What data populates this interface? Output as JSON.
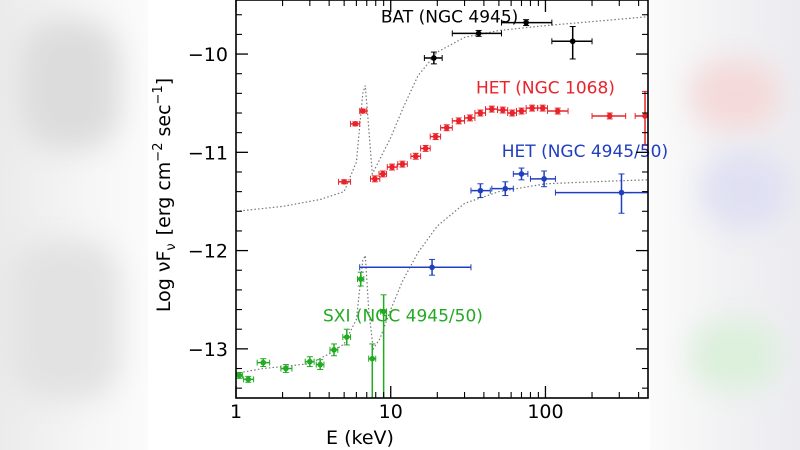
{
  "chart_data": {
    "type": "scatter",
    "xlabel": "E (keV)",
    "ylabel": "Log νFν [erg cm⁻² sec⁻¹]",
    "ylabel_parts": {
      "base": "Log νF",
      "sub": "ν",
      "bracket": "[erg cm",
      "sup1": "−2",
      "mid": " sec",
      "sup2": "−1",
      "close": "]"
    },
    "xscale": "log",
    "xlim": [
      1,
      460
    ],
    "ylim": [
      -13.5,
      -9.45
    ],
    "xticks": [
      1,
      10,
      100
    ],
    "xtick_labels": [
      "1",
      "10",
      "100"
    ],
    "yticks": [
      -10,
      -11,
      -12,
      -13
    ],
    "ytick_labels": [
      "−10",
      "−11",
      "−12",
      "−13"
    ],
    "series": [
      {
        "name": "BAT (NGC 4945)",
        "label": "BAT (NGC 4945)",
        "color": "#000000",
        "label_pos": {
          "x": 24,
          "y": -9.68
        },
        "points": [
          {
            "x": 19,
            "xlo": 16.5,
            "xhi": 21.5,
            "y": -10.04,
            "ylo": -10.1,
            "yhi": -9.98
          },
          {
            "x": 37,
            "xlo": 25,
            "xhi": 52,
            "y": -9.79,
            "ylo": -9.82,
            "yhi": -9.76
          },
          {
            "x": 75,
            "xlo": 52,
            "xhi": 110,
            "y": -9.68,
            "ylo": -9.71,
            "yhi": -9.65
          },
          {
            "x": 150,
            "xlo": 110,
            "xhi": 200,
            "y": -9.87,
            "ylo": -10.05,
            "yhi": -9.72
          }
        ]
      },
      {
        "name": "HET (NGC 1068)",
        "label": "HET (NGC 1068)",
        "color": "#e8232b",
        "label_pos": {
          "x": 100,
          "y": -10.4
        },
        "points": [
          {
            "x": 5.0,
            "xlo": 4.6,
            "xhi": 5.5,
            "y": -11.3,
            "ylo": -11.32,
            "yhi": -11.28
          },
          {
            "x": 5.9,
            "xlo": 5.5,
            "xhi": 6.3,
            "y": -10.71,
            "ylo": -10.73,
            "yhi": -10.69
          },
          {
            "x": 6.6,
            "xlo": 6.3,
            "xhi": 7.0,
            "y": -10.58,
            "ylo": -10.6,
            "yhi": -10.56
          },
          {
            "x": 7.9,
            "xlo": 7.4,
            "xhi": 8.5,
            "y": -11.27,
            "ylo": -11.3,
            "yhi": -11.24
          },
          {
            "x": 8.9,
            "xlo": 8.4,
            "xhi": 9.4,
            "y": -11.22,
            "ylo": -11.25,
            "yhi": -11.19
          },
          {
            "x": 10.2,
            "xlo": 9.5,
            "xhi": 11.0,
            "y": -11.15,
            "ylo": -11.18,
            "yhi": -11.12
          },
          {
            "x": 11.9,
            "xlo": 11.1,
            "xhi": 12.8,
            "y": -11.12,
            "ylo": -11.15,
            "yhi": -11.09
          },
          {
            "x": 14.5,
            "xlo": 13.5,
            "xhi": 15.6,
            "y": -11.04,
            "ylo": -11.07,
            "yhi": -11.01
          },
          {
            "x": 16.8,
            "xlo": 15.6,
            "xhi": 18.0,
            "y": -10.96,
            "ylo": -10.99,
            "yhi": -10.93
          },
          {
            "x": 19.5,
            "xlo": 18.0,
            "xhi": 21.0,
            "y": -10.84,
            "ylo": -10.87,
            "yhi": -10.81
          },
          {
            "x": 23.0,
            "xlo": 21.0,
            "xhi": 25.0,
            "y": -10.75,
            "ylo": -10.78,
            "yhi": -10.72
          },
          {
            "x": 27.5,
            "xlo": 25.0,
            "xhi": 30.0,
            "y": -10.68,
            "ylo": -10.71,
            "yhi": -10.65
          },
          {
            "x": 32.5,
            "xlo": 30.0,
            "xhi": 35.0,
            "y": -10.65,
            "ylo": -10.68,
            "yhi": -10.62
          },
          {
            "x": 38.0,
            "xlo": 35.0,
            "xhi": 41.0,
            "y": -10.6,
            "ylo": -10.63,
            "yhi": -10.57
          },
          {
            "x": 45.0,
            "xlo": 41.0,
            "xhi": 49.0,
            "y": -10.56,
            "ylo": -10.59,
            "yhi": -10.53
          },
          {
            "x": 53.0,
            "xlo": 49.0,
            "xhi": 57.0,
            "y": -10.57,
            "ylo": -10.6,
            "yhi": -10.54
          },
          {
            "x": 61.0,
            "xlo": 57.0,
            "xhi": 65.0,
            "y": -10.6,
            "ylo": -10.63,
            "yhi": -10.57
          },
          {
            "x": 70.0,
            "xlo": 65.0,
            "xhi": 75.0,
            "y": -10.58,
            "ylo": -10.61,
            "yhi": -10.55
          },
          {
            "x": 82.0,
            "xlo": 75.0,
            "xhi": 89.0,
            "y": -10.55,
            "ylo": -10.58,
            "yhi": -10.52
          },
          {
            "x": 96.0,
            "xlo": 89.0,
            "xhi": 103.0,
            "y": -10.55,
            "ylo": -10.58,
            "yhi": -10.52
          },
          {
            "x": 120.0,
            "xlo": 103.0,
            "xhi": 140.0,
            "y": -10.58,
            "ylo": -10.61,
            "yhi": -10.55
          },
          {
            "x": 260.0,
            "xlo": 200.0,
            "xhi": 330.0,
            "y": -10.63,
            "ylo": -10.66,
            "yhi": -10.6
          },
          {
            "x": 440.0,
            "xlo": 380.0,
            "xhi": 460.0,
            "y": -10.63,
            "ylo": -10.92,
            "yhi": -10.38
          }
        ]
      },
      {
        "name": "HET (NGC 4945/50)",
        "label": "HET (NGC 4945/50)",
        "color": "#1f3fbf",
        "label_pos": {
          "x": 180,
          "y": -11.05
        },
        "points": [
          {
            "x": 18.5,
            "xlo": 6.3,
            "xhi": 33.0,
            "y": -12.17,
            "ylo": -12.25,
            "yhi": -12.09
          },
          {
            "x": 38.0,
            "xlo": 33.0,
            "xhi": 44.0,
            "y": -11.39,
            "ylo": -11.46,
            "yhi": -11.32
          },
          {
            "x": 55.0,
            "xlo": 45.0,
            "xhi": 62.0,
            "y": -11.37,
            "ylo": -11.44,
            "yhi": -11.3
          },
          {
            "x": 70.0,
            "xlo": 62.0,
            "xhi": 77.0,
            "y": -11.22,
            "ylo": -11.28,
            "yhi": -11.16
          },
          {
            "x": 98.0,
            "xlo": 80.0,
            "xhi": 116.0,
            "y": -11.27,
            "ylo": -11.35,
            "yhi": -11.19
          },
          {
            "x": 310.0,
            "xlo": 116.0,
            "xhi": 460.0,
            "y": -11.41,
            "ylo": -11.62,
            "yhi": -11.22
          }
        ]
      },
      {
        "name": "SXI (NGC 4945/50)",
        "label": "SXI (NGC 4945/50)",
        "color": "#22aa22",
        "label_pos": {
          "x": 12,
          "y": -12.72
        },
        "points": [
          {
            "x": 1.05,
            "xlo": 1.0,
            "xhi": 1.1,
            "y": -13.27,
            "ylo": -13.3,
            "yhi": -13.24
          },
          {
            "x": 1.2,
            "xlo": 1.12,
            "xhi": 1.3,
            "y": -13.31,
            "ylo": -13.34,
            "yhi": -13.28
          },
          {
            "x": 1.5,
            "xlo": 1.37,
            "xhi": 1.65,
            "y": -13.14,
            "ylo": -13.18,
            "yhi": -13.1
          },
          {
            "x": 2.1,
            "xlo": 1.95,
            "xhi": 2.3,
            "y": -13.2,
            "ylo": -13.24,
            "yhi": -13.16
          },
          {
            "x": 3.0,
            "xlo": 2.8,
            "xhi": 3.2,
            "y": -13.13,
            "ylo": -13.18,
            "yhi": -13.08
          },
          {
            "x": 3.5,
            "xlo": 3.3,
            "xhi": 3.7,
            "y": -13.16,
            "ylo": -13.21,
            "yhi": -13.11
          },
          {
            "x": 4.3,
            "xlo": 4.05,
            "xhi": 4.55,
            "y": -13.01,
            "ylo": -13.07,
            "yhi": -12.95
          },
          {
            "x": 5.2,
            "xlo": 4.9,
            "xhi": 5.5,
            "y": -12.88,
            "ylo": -12.96,
            "yhi": -12.8
          },
          {
            "x": 6.4,
            "xlo": 6.1,
            "xhi": 6.7,
            "y": -12.29,
            "ylo": -12.36,
            "yhi": -12.22
          },
          {
            "x": 7.6,
            "xlo": 7.2,
            "xhi": 8.0,
            "y": -13.1,
            "ylo": -13.5,
            "yhi": -12.95
          },
          {
            "x": 9.0,
            "xlo": 8.6,
            "xhi": 9.4,
            "y": -12.62,
            "ylo": -13.5,
            "yhi": -12.45
          }
        ]
      }
    ],
    "model_curves": [
      {
        "name": "upper model",
        "color": "#777777",
        "points": [
          [
            1,
            -11.6
          ],
          [
            2,
            -11.55
          ],
          [
            3.5,
            -11.48
          ],
          [
            5,
            -11.4
          ],
          [
            6,
            -11.1
          ],
          [
            6.6,
            -10.4
          ],
          [
            6.85,
            -10.32
          ],
          [
            7.2,
            -10.75
          ],
          [
            7.6,
            -11.22
          ],
          [
            8.2,
            -11.12
          ],
          [
            10,
            -10.85
          ],
          [
            12,
            -10.55
          ],
          [
            15,
            -10.22
          ],
          [
            20,
            -9.98
          ],
          [
            30,
            -9.83
          ],
          [
            50,
            -9.76
          ],
          [
            100,
            -9.71
          ],
          [
            200,
            -9.67
          ],
          [
            460,
            -9.62
          ]
        ]
      },
      {
        "name": "lower model",
        "color": "#777777",
        "points": [
          [
            1,
            -13.25
          ],
          [
            1.5,
            -13.2
          ],
          [
            2,
            -13.18
          ],
          [
            3,
            -13.15
          ],
          [
            4,
            -13.05
          ],
          [
            5,
            -12.95
          ],
          [
            6,
            -12.7
          ],
          [
            6.6,
            -12.1
          ],
          [
            6.85,
            -12.05
          ],
          [
            7.2,
            -12.6
          ],
          [
            7.7,
            -13.0
          ],
          [
            8.5,
            -12.9
          ],
          [
            10,
            -12.6
          ],
          [
            12,
            -12.3
          ],
          [
            15,
            -12.02
          ],
          [
            20,
            -11.75
          ],
          [
            30,
            -11.52
          ],
          [
            50,
            -11.4
          ],
          [
            100,
            -11.32
          ],
          [
            200,
            -11.3
          ],
          [
            460,
            -11.28
          ]
        ]
      }
    ]
  }
}
